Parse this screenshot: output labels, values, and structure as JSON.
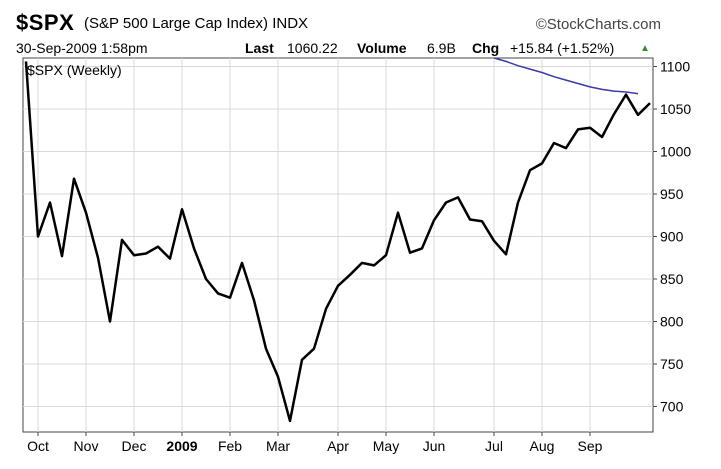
{
  "header": {
    "symbol": "$SPX",
    "name": "(S&P 500 Large Cap Index)",
    "exchange": "INDX",
    "brand": "©StockCharts.com",
    "date": "30-Sep-2009 1:58pm",
    "last_label": "Last",
    "last_value": "1060.22",
    "volume_label": "Volume",
    "volume_value": "6.9B",
    "chg_label": "Chg",
    "chg_value": "+15.84 (+1.52%)",
    "chg_arrow": "▲"
  },
  "colors": {
    "price": "#000000",
    "ma": "#3a3aa8",
    "up": "#2f8f2f"
  },
  "chart_data": {
    "type": "line",
    "title": "$SPX (Weekly)",
    "ylim": [
      670,
      1110
    ],
    "yticks": [
      700,
      750,
      800,
      850,
      900,
      950,
      1000,
      1050,
      1100
    ],
    "xticks": [
      {
        "label": "Oct",
        "i": 1,
        "bold": false
      },
      {
        "label": "Nov",
        "i": 5,
        "bold": false
      },
      {
        "label": "Dec",
        "i": 9,
        "bold": false
      },
      {
        "label": "2009",
        "i": 13,
        "bold": true
      },
      {
        "label": "Feb",
        "i": 17,
        "bold": false
      },
      {
        "label": "Mar",
        "i": 21,
        "bold": false
      },
      {
        "label": "Apr",
        "i": 26,
        "bold": false
      },
      {
        "label": "May",
        "i": 30,
        "bold": false
      },
      {
        "label": "Jun",
        "i": 34,
        "bold": false
      },
      {
        "label": "Jul",
        "i": 39,
        "bold": false
      },
      {
        "label": "Aug",
        "i": 43,
        "bold": false
      },
      {
        "label": "Sep",
        "i": 47,
        "bold": false
      }
    ],
    "series": [
      {
        "values": [
          1106,
          900,
          940,
          877,
          968,
          928,
          875,
          800,
          896,
          878,
          880,
          888,
          874,
          932,
          886,
          850,
          833,
          828,
          869,
          825,
          768,
          735,
          683,
          755,
          768,
          815,
          842,
          855,
          869,
          866,
          878,
          928,
          881,
          886,
          919,
          940,
          946,
          920,
          918,
          895,
          879,
          940,
          978,
          986,
          1010,
          1004,
          1026,
          1028,
          1017,
          1044,
          1067,
          1043,
          1057
        ]
      },
      {
        "start_index": 39,
        "values": [
          1112,
          1106,
          1101,
          1097,
          1093,
          1088,
          1084,
          1080,
          1076,
          1073,
          1071,
          1070,
          1068
        ]
      }
    ]
  }
}
